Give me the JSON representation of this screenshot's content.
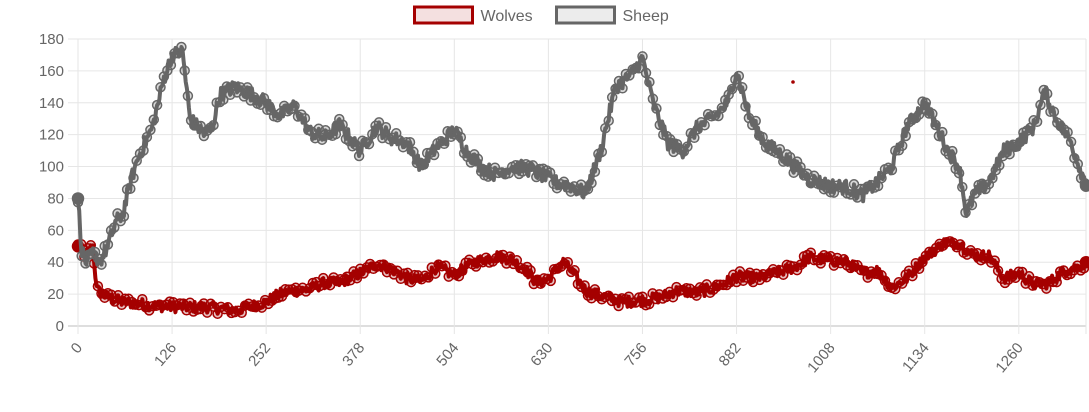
{
  "chart_data": {
    "type": "line",
    "title": "",
    "xlabel": "",
    "ylabel": "",
    "ylim": [
      0,
      180
    ],
    "xlim": [
      0,
      1350
    ],
    "y_ticks": [
      0,
      20,
      40,
      60,
      80,
      100,
      120,
      140,
      160,
      180
    ],
    "x_ticks": [
      0,
      126,
      252,
      378,
      504,
      630,
      756,
      882,
      1008,
      1134,
      1260
    ],
    "grid": true,
    "legend_position": "top",
    "series": [
      {
        "name": "Wolves",
        "color": "#a50000",
        "points": [
          [
            0,
            50
          ],
          [
            10,
            45
          ],
          [
            20,
            50
          ],
          [
            25,
            23
          ],
          [
            30,
            21
          ],
          [
            40,
            18
          ],
          [
            60,
            15
          ],
          [
            80,
            14
          ],
          [
            100,
            13
          ],
          [
            126,
            12
          ],
          [
            150,
            12
          ],
          [
            170,
            12
          ],
          [
            190,
            11
          ],
          [
            210,
            10
          ],
          [
            230,
            12
          ],
          [
            252,
            15
          ],
          [
            270,
            20
          ],
          [
            290,
            22
          ],
          [
            310,
            23
          ],
          [
            330,
            27
          ],
          [
            350,
            27
          ],
          [
            378,
            33
          ],
          [
            400,
            39
          ],
          [
            420,
            36
          ],
          [
            440,
            30
          ],
          [
            460,
            28
          ],
          [
            480,
            37
          ],
          [
            504,
            32
          ],
          [
            530,
            40
          ],
          [
            560,
            44
          ],
          [
            580,
            42
          ],
          [
            600,
            35
          ],
          [
            615,
            27
          ],
          [
            630,
            30
          ],
          [
            650,
            40
          ],
          [
            665,
            32
          ],
          [
            680,
            22
          ],
          [
            700,
            19
          ],
          [
            730,
            15
          ],
          [
            756,
            16
          ],
          [
            780,
            18
          ],
          [
            800,
            22
          ],
          [
            830,
            21
          ],
          [
            860,
            25
          ],
          [
            882,
            31
          ],
          [
            910,
            30
          ],
          [
            940,
            34
          ],
          [
            960,
            37
          ],
          [
            980,
            43
          ],
          [
            1008,
            41
          ],
          [
            1030,
            40
          ],
          [
            1050,
            33
          ],
          [
            1070,
            35
          ],
          [
            1090,
            24
          ],
          [
            1110,
            30
          ],
          [
            1134,
            43
          ],
          [
            1160,
            52
          ],
          [
            1180,
            52
          ],
          [
            1200,
            44
          ],
          [
            1220,
            44
          ],
          [
            1240,
            30
          ],
          [
            1260,
            33
          ],
          [
            1280,
            26
          ],
          [
            1300,
            27
          ],
          [
            1320,
            34
          ],
          [
            1340,
            37
          ],
          [
            1350,
            40
          ]
        ]
      },
      {
        "name": "Sheep",
        "color": "#666666",
        "points": [
          [
            0,
            80
          ],
          [
            5,
            48
          ],
          [
            10,
            40
          ],
          [
            20,
            45
          ],
          [
            30,
            41
          ],
          [
            40,
            50
          ],
          [
            50,
            65
          ],
          [
            60,
            70
          ],
          [
            70,
            90
          ],
          [
            80,
            105
          ],
          [
            100,
            125
          ],
          [
            115,
            155
          ],
          [
            126,
            170
          ],
          [
            140,
            172
          ],
          [
            150,
            130
          ],
          [
            160,
            125
          ],
          [
            170,
            120
          ],
          [
            180,
            125
          ],
          [
            190,
            145
          ],
          [
            210,
            150
          ],
          [
            230,
            146
          ],
          [
            252,
            140
          ],
          [
            270,
            132
          ],
          [
            290,
            138
          ],
          [
            310,
            122
          ],
          [
            330,
            118
          ],
          [
            350,
            126
          ],
          [
            378,
            110
          ],
          [
            400,
            125
          ],
          [
            420,
            118
          ],
          [
            440,
            115
          ],
          [
            460,
            100
          ],
          [
            480,
            112
          ],
          [
            504,
            123
          ],
          [
            520,
            110
          ],
          [
            540,
            100
          ],
          [
            560,
            95
          ],
          [
            580,
            100
          ],
          [
            600,
            99
          ],
          [
            620,
            95
          ],
          [
            640,
            90
          ],
          [
            660,
            88
          ],
          [
            680,
            83
          ],
          [
            700,
            110
          ],
          [
            720,
            150
          ],
          [
            740,
            157
          ],
          [
            756,
            168
          ],
          [
            770,
            140
          ],
          [
            790,
            115
          ],
          [
            810,
            110
          ],
          [
            830,
            125
          ],
          [
            850,
            130
          ],
          [
            870,
            140
          ],
          [
            882,
            160
          ],
          [
            900,
            130
          ],
          [
            920,
            115
          ],
          [
            940,
            108
          ],
          [
            960,
            100
          ],
          [
            980,
            92
          ],
          [
            1008,
            88
          ],
          [
            1030,
            87
          ],
          [
            1050,
            82
          ],
          [
            1070,
            90
          ],
          [
            1090,
            100
          ],
          [
            1110,
            125
          ],
          [
            1134,
            140
          ],
          [
            1150,
            125
          ],
          [
            1165,
            110
          ],
          [
            1180,
            100
          ],
          [
            1190,
            70
          ],
          [
            1200,
            82
          ],
          [
            1220,
            90
          ],
          [
            1240,
            110
          ],
          [
            1260,
            115
          ],
          [
            1280,
            125
          ],
          [
            1295,
            147
          ],
          [
            1310,
            130
          ],
          [
            1330,
            115
          ],
          [
            1345,
            95
          ],
          [
            1350,
            88
          ]
        ]
      }
    ]
  }
}
